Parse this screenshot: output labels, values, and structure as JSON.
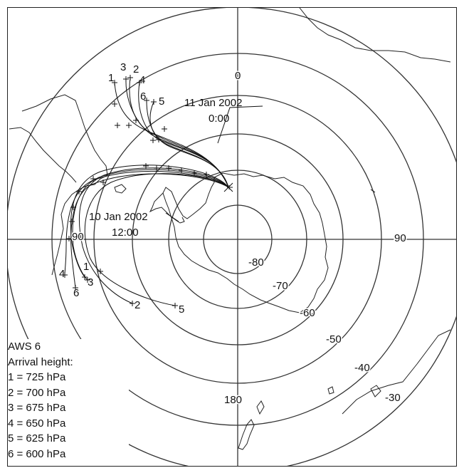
{
  "map": {
    "meridians": {
      "top": "0",
      "right": "90",
      "bottom": "180",
      "left": "90"
    },
    "latitudes": [
      "-80",
      "-70",
      "-60",
      "-50",
      "-40",
      "-30"
    ],
    "annotations": {
      "start_date": "11 Jan 2002",
      "start_time": "0:00",
      "mid_date": "10 Jan 2002",
      "mid_time": "12:00"
    },
    "endpoint_labels_upper": [
      "1",
      "2",
      "3",
      "4",
      "5",
      "6"
    ],
    "endpoint_labels_lower": [
      "1",
      "2",
      "3",
      "4",
      "5",
      "6"
    ]
  },
  "legend": {
    "station": "AWS 6",
    "heading": "Arrival height:",
    "items": [
      "1 = 725 hPa",
      "2 = 700 hPa",
      "3 = 675 hPa",
      "4 = 650 hPa",
      "5 = 625 hPa",
      "6 = 600 hPa"
    ]
  }
}
